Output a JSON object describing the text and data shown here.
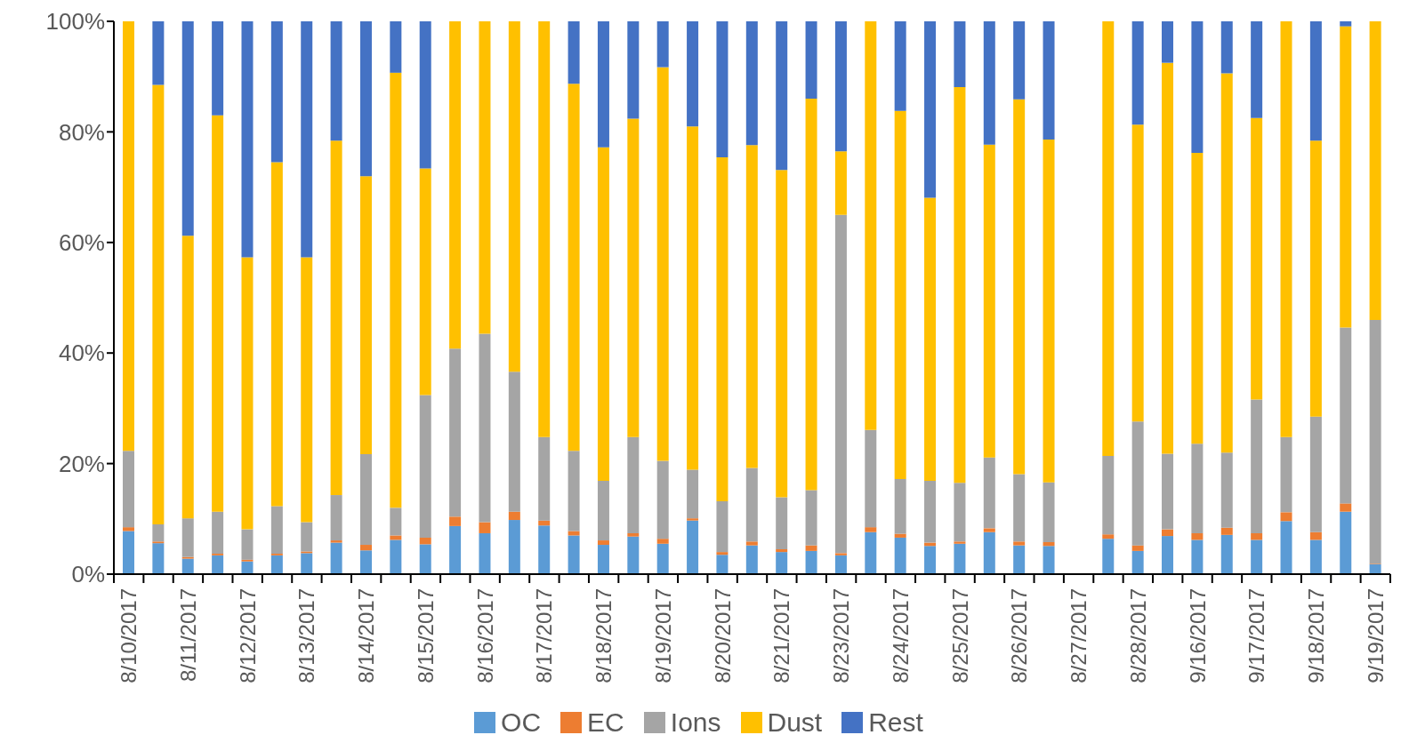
{
  "chart_data": {
    "type": "bar",
    "stacked": true,
    "categories": [
      "8/10/2017",
      null,
      "8/11/2017",
      null,
      "8/12/2017",
      null,
      "8/13/2017",
      null,
      "8/14/2017",
      null,
      "8/15/2017",
      null,
      "8/16/2017",
      null,
      "8/17/2017",
      null,
      "8/18/2017",
      null,
      "8/19/2017",
      null,
      "8/20/2017",
      null,
      "8/21/2017",
      null,
      "8/23/2017",
      null,
      "8/24/2017",
      null,
      "8/25/2017",
      null,
      "8/26/2017",
      null,
      "8/27/2017",
      null,
      "8/28/2017",
      null,
      "9/16/2017",
      null,
      "9/17/2017",
      null,
      "9/18/2017",
      null,
      "9/19/2017"
    ],
    "series": [
      {
        "name": "OC",
        "color": "#5b9bd5",
        "values": [
          7.8,
          5.6,
          2.8,
          3.4,
          2.3,
          3.4,
          3.8,
          5.7,
          4.3,
          6.2,
          5.4,
          8.7,
          7.4,
          9.8,
          8.8,
          7.0,
          5.3,
          6.8,
          5.5,
          9.7,
          3.5,
          5.2,
          4.0,
          4.2,
          3.4,
          7.6,
          6.6,
          5.1,
          5.5,
          7.6,
          5.2,
          5.1,
          null,
          6.4,
          4.2,
          6.9,
          6.2,
          7.1,
          6.2,
          9.6,
          6.2,
          11.3,
          1.8
        ]
      },
      {
        "name": "EC",
        "color": "#ed7d31",
        "values": [
          0.7,
          0.3,
          0.3,
          0.3,
          0.3,
          0.3,
          0.3,
          0.4,
          1.0,
          0.8,
          1.2,
          1.7,
          2.0,
          1.5,
          0.9,
          0.8,
          0.8,
          0.6,
          0.9,
          0.4,
          0.5,
          0.7,
          0.5,
          1.0,
          0.4,
          0.9,
          0.7,
          0.6,
          0.4,
          0.7,
          0.7,
          0.7,
          null,
          0.8,
          1.0,
          1.2,
          1.2,
          1.3,
          1.2,
          1.6,
          1.4,
          1.5,
          0.1
        ]
      },
      {
        "name": "Ions",
        "color": "#a5a5a5",
        "values": [
          13.8,
          3.1,
          7.0,
          7.6,
          5.5,
          8.6,
          5.3,
          8.2,
          16.4,
          5.0,
          25.8,
          30.4,
          34.1,
          25.3,
          15.1,
          14.5,
          10.8,
          17.4,
          14.1,
          8.8,
          9.2,
          13.3,
          9.4,
          10.0,
          61.2,
          17.6,
          9.9,
          11.2,
          10.6,
          12.8,
          12.2,
          10.8,
          null,
          14.2,
          22.4,
          13.7,
          16.2,
          13.6,
          24.2,
          13.6,
          20.9,
          31.8,
          44.1
        ]
      },
      {
        "name": "Dust",
        "color": "#ffc000",
        "values": [
          77.7,
          79.5,
          51.1,
          71.7,
          49.2,
          62.2,
          47.9,
          64.1,
          50.3,
          78.7,
          41.0,
          59.2,
          56.5,
          63.4,
          75.2,
          66.4,
          60.3,
          57.6,
          71.2,
          62.1,
          62.2,
          58.4,
          59.2,
          70.8,
          11.5,
          73.9,
          66.6,
          51.2,
          71.6,
          56.6,
          67.8,
          62.0,
          null,
          78.6,
          53.7,
          70.7,
          52.6,
          68.6,
          50.9,
          75.2,
          49.9,
          54.5,
          54.0
        ]
      },
      {
        "name": "Rest",
        "color": "#4472c4",
        "values": [
          0,
          11.5,
          38.8,
          17.0,
          42.7,
          25.5,
          42.7,
          21.6,
          28.0,
          9.3,
          26.6,
          0,
          0,
          0,
          0,
          11.3,
          22.8,
          17.6,
          8.3,
          19.0,
          24.6,
          22.4,
          26.9,
          14.0,
          23.5,
          0,
          16.2,
          31.9,
          11.9,
          22.3,
          14.1,
          21.4,
          null,
          0,
          18.7,
          7.5,
          23.8,
          9.4,
          17.5,
          0,
          21.6,
          0.9,
          0
        ]
      }
    ],
    "ylim": [
      0,
      100
    ],
    "yticks": [
      {
        "value": 0,
        "label": "0%"
      },
      {
        "value": 20,
        "label": "20%"
      },
      {
        "value": 40,
        "label": "40%"
      },
      {
        "value": 60,
        "label": "60%"
      },
      {
        "value": 80,
        "label": "80%"
      },
      {
        "value": 100,
        "label": "100%"
      }
    ],
    "legend": "bottom"
  }
}
